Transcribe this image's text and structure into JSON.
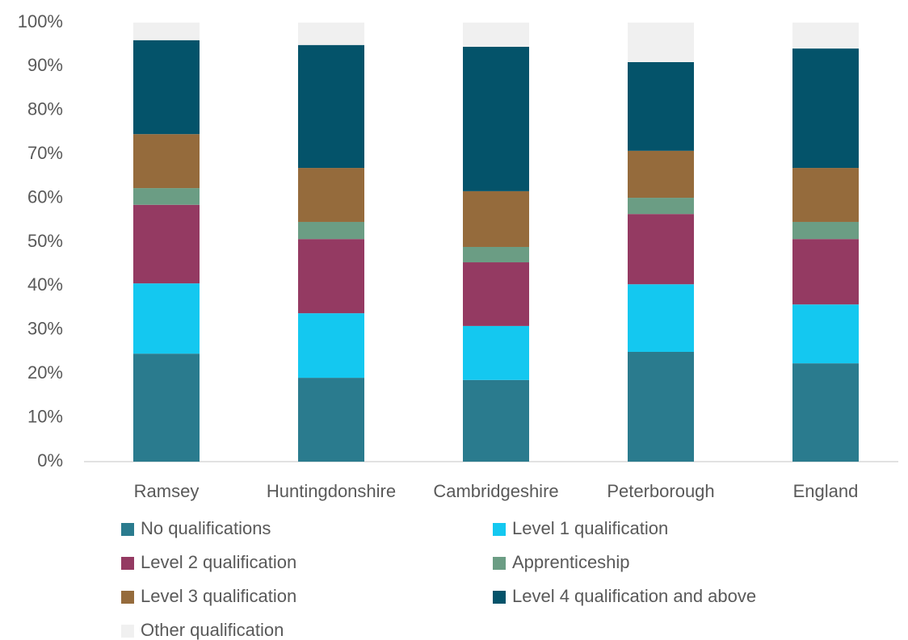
{
  "chart_data": {
    "type": "stacked_bar",
    "categories": [
      "Ramsey",
      "Huntingdonshire",
      "Cambridgeshire",
      "Peterborough",
      "England"
    ],
    "series": [
      {
        "name": "No qualifications",
        "color": "#2a7b8e",
        "values": [
          24.6,
          19.1,
          18.6,
          25.0,
          22.4
        ]
      },
      {
        "name": "Level 1 qualification",
        "color": "#14c8f0",
        "values": [
          16.0,
          14.7,
          12.3,
          15.4,
          13.4
        ]
      },
      {
        "name": "Level 2 qualification",
        "color": "#943a62",
        "values": [
          17.9,
          16.9,
          14.5,
          16.0,
          14.9
        ]
      },
      {
        "name": "Apprenticeship",
        "color": "#6b9d84",
        "values": [
          3.8,
          3.9,
          3.5,
          3.7,
          3.9
        ]
      },
      {
        "name": "Level 3 qualification",
        "color": "#956b3c",
        "values": [
          12.3,
          12.3,
          12.7,
          10.7,
          12.3
        ]
      },
      {
        "name": "Level 4 qualification and above",
        "color": "#04536a",
        "values": [
          21.4,
          28.0,
          32.9,
          20.2,
          27.2
        ]
      },
      {
        "name": "Other qualification",
        "color": "#f0f0f0",
        "values": [
          4.0,
          5.1,
          5.5,
          9.0,
          5.9
        ]
      }
    ],
    "ylim": [
      0,
      100
    ],
    "yticks": [
      {
        "value": 0,
        "label": "0%"
      },
      {
        "value": 10,
        "label": "10%"
      },
      {
        "value": 20,
        "label": "20%"
      },
      {
        "value": 30,
        "label": "30%"
      },
      {
        "value": 40,
        "label": "40%"
      },
      {
        "value": 50,
        "label": "50%"
      },
      {
        "value": 60,
        "label": "60%"
      },
      {
        "value": 70,
        "label": "70%"
      },
      {
        "value": 80,
        "label": "80%"
      },
      {
        "value": 90,
        "label": "90%"
      },
      {
        "value": 100,
        "label": "100%"
      }
    ],
    "grid": false,
    "legend": "bottom"
  }
}
